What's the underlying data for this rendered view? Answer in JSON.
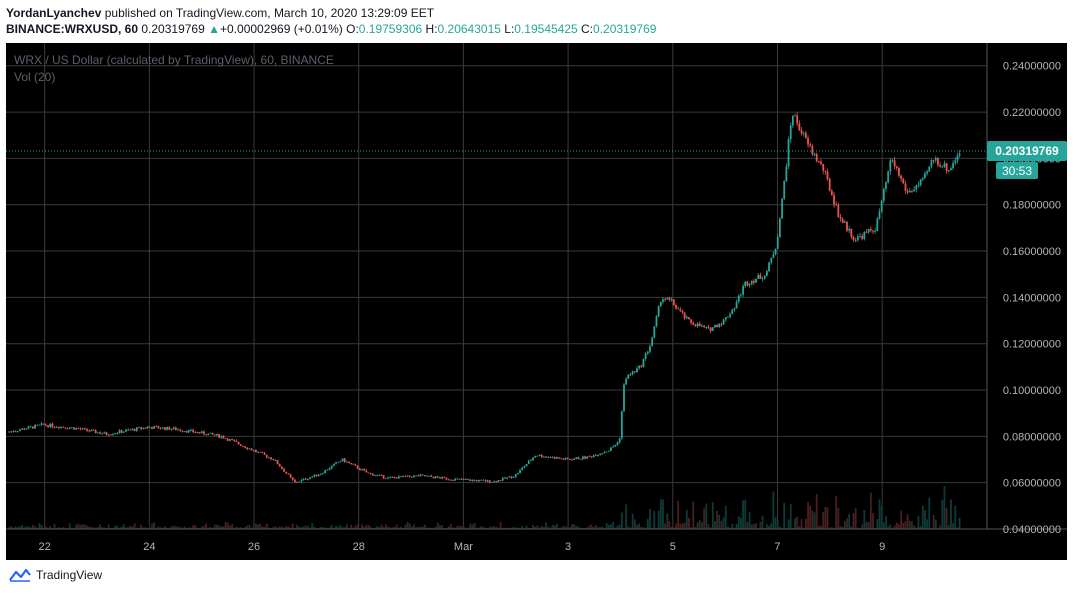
{
  "header": {
    "author": "YordanLyanchev",
    "published_text": "published on TradingView.com, March 10, 2020 13:29:09 EET",
    "symbol": "BINANCE:WRXUSD, 60",
    "last": "0.20319769",
    "change": "+0.00002969 (+0.01%)",
    "o_label": "O:",
    "o_value": "0.19759306",
    "h_label": "H:",
    "h_value": "0.20643015",
    "l_label": "L:",
    "l_value": "0.19545425",
    "c_label": "C:",
    "c_value": "0.20319769"
  },
  "legend": {
    "title": "WRX / US Dollar (calculated by TradingView), 60, BINANCE",
    "volume": "Vol (20)"
  },
  "price_tag": {
    "value": "0.20319769",
    "countdown": "30:53"
  },
  "footer": {
    "brand": "TradingView"
  },
  "colors": {
    "up": "#26a69a",
    "down": "#ef5350",
    "background": "#000000",
    "grid": "#3a3a3a",
    "tag": "#26a69a"
  },
  "chart_data": {
    "type": "candlestick",
    "title": "WRX / US Dollar (calculated by TradingView), 60, BINANCE",
    "ylim": [
      0.04,
      0.2455
    ],
    "y_ticks": [
      "0.24000000",
      "0.22000000",
      "0.20000000",
      "0.18000000",
      "0.16000000",
      "0.14000000",
      "0.12000000",
      "0.10000000",
      "0.08000000",
      "0.06000000",
      "0.04000000"
    ],
    "y_tick_values": [
      0.24,
      0.22,
      0.2,
      0.18,
      0.16,
      0.14,
      0.12,
      0.1,
      0.08,
      0.06,
      0.04
    ],
    "x_ticks": [
      "22",
      "24",
      "26",
      "28",
      "Mar",
      "3",
      "5",
      "7",
      "9"
    ],
    "x_tick_days": [
      1,
      3,
      5,
      7,
      9,
      11,
      13,
      15,
      17
    ],
    "x_range_days": [
      0.3,
      18.85
    ],
    "last_price": 0.20319769,
    "price_path": [
      [
        0.3,
        0.0818
      ],
      [
        1.0,
        0.085
      ],
      [
        1.6,
        0.0835
      ],
      [
        2.2,
        0.081
      ],
      [
        3.0,
        0.084
      ],
      [
        3.5,
        0.0832
      ],
      [
        4.0,
        0.0815
      ],
      [
        4.4,
        0.08
      ],
      [
        4.8,
        0.076
      ],
      [
        5.4,
        0.07
      ],
      [
        5.8,
        0.06
      ],
      [
        6.3,
        0.064
      ],
      [
        6.7,
        0.07
      ],
      [
        7.2,
        0.064
      ],
      [
        7.6,
        0.062
      ],
      [
        8.2,
        0.063
      ],
      [
        8.8,
        0.0615
      ],
      [
        9.6,
        0.0605
      ],
      [
        10.0,
        0.063
      ],
      [
        10.4,
        0.072
      ],
      [
        11.0,
        0.07
      ],
      [
        11.4,
        0.071
      ],
      [
        11.8,
        0.074
      ],
      [
        12.0,
        0.078
      ],
      [
        12.1,
        0.105
      ],
      [
        12.4,
        0.11
      ],
      [
        12.6,
        0.12
      ],
      [
        12.8,
        0.14
      ],
      [
        13.0,
        0.138
      ],
      [
        13.3,
        0.13
      ],
      [
        13.7,
        0.126
      ],
      [
        14.0,
        0.13
      ],
      [
        14.2,
        0.136
      ],
      [
        14.4,
        0.146
      ],
      [
        14.8,
        0.15
      ],
      [
        15.0,
        0.163
      ],
      [
        15.1,
        0.18
      ],
      [
        15.3,
        0.22
      ],
      [
        15.6,
        0.206
      ],
      [
        15.9,
        0.195
      ],
      [
        16.2,
        0.175
      ],
      [
        16.5,
        0.165
      ],
      [
        16.9,
        0.17
      ],
      [
        17.2,
        0.2
      ],
      [
        17.5,
        0.185
      ],
      [
        17.8,
        0.19
      ],
      [
        18.0,
        0.2
      ],
      [
        18.3,
        0.195
      ],
      [
        18.5,
        0.2032
      ]
    ],
    "volume_note": "Vol (20) histogram, very low values except around Mar 4–10"
  }
}
